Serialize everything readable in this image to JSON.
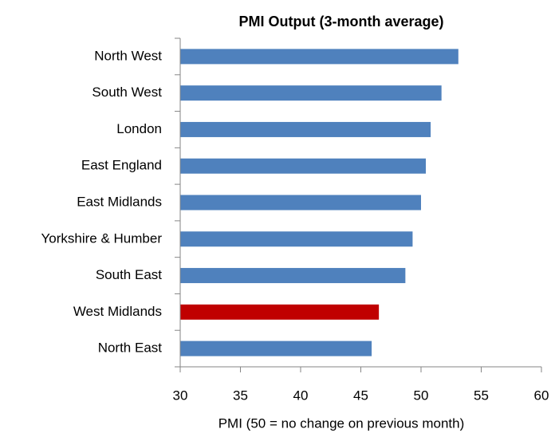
{
  "chart_data": {
    "type": "barh",
    "title": "PMI Output (3-month average)",
    "x_label": "PMI (50 = no change on previous month)",
    "categories": [
      "North West",
      "South West",
      "London",
      "East England",
      "East Midlands",
      "Yorkshire & Humber",
      "South East",
      "West Midlands",
      "North East"
    ],
    "values": [
      53.1,
      51.7,
      50.8,
      50.4,
      50.0,
      49.3,
      48.7,
      46.5,
      45.9
    ],
    "colors": [
      "#4f81bd",
      "#4f81bd",
      "#4f81bd",
      "#4f81bd",
      "#4f81bd",
      "#4f81bd",
      "#4f81bd",
      "#c00000",
      "#4f81bd"
    ],
    "xlim": [
      30,
      60
    ],
    "xticks": [
      30,
      35,
      40,
      45,
      50,
      55,
      60
    ],
    "grid": false
  }
}
